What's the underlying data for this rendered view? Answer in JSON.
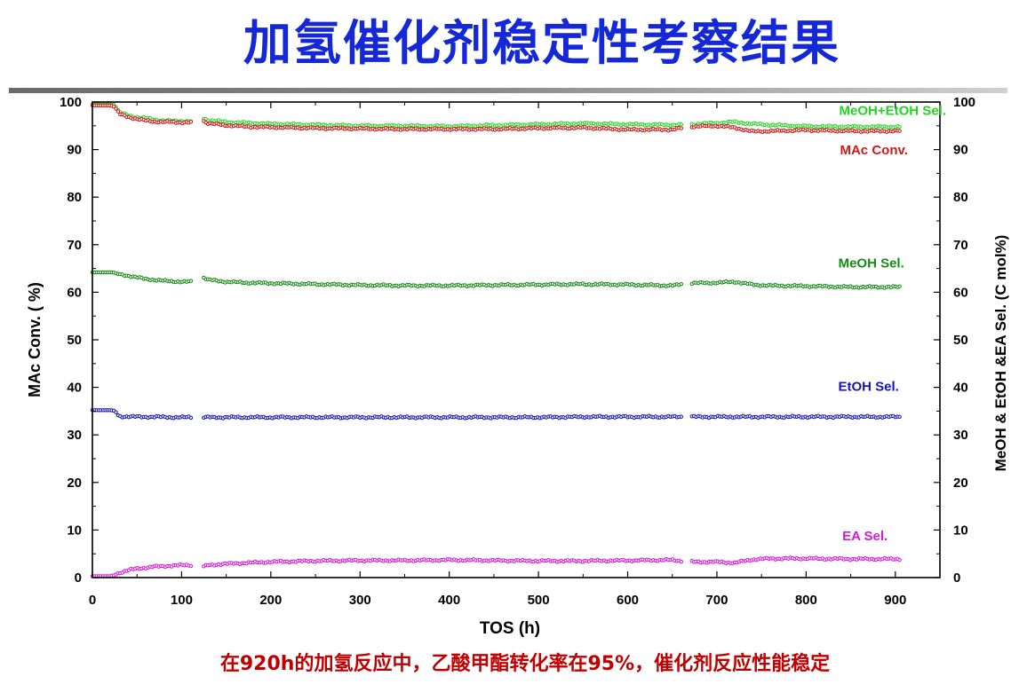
{
  "title": "加氢催化剂稳定性考察结果",
  "caption": "在920h的加氢反应中，乙酸甲酯转化率在95%，催化剂反应性能稳定",
  "chart_data": {
    "type": "scatter",
    "xlabel": "TOS (h)",
    "ylabel_left": "MAc Conv. ( %)",
    "ylabel_right": "MeOH & EtOH &EA Sel. (C mol%)",
    "xlim": [
      0,
      950
    ],
    "ylim": [
      0,
      100
    ],
    "xticks": [
      0,
      100,
      200,
      300,
      400,
      500,
      600,
      700,
      800,
      900
    ],
    "yticks": [
      0,
      10,
      20,
      30,
      40,
      50,
      60,
      70,
      80,
      90,
      100
    ],
    "grid": false,
    "series": [
      {
        "name": "MeOH+EtOH Sel.",
        "color": "#22d422",
        "points": [
          [
            0,
            99.5
          ],
          [
            5,
            99.5
          ],
          [
            10,
            99.5
          ],
          [
            15,
            99.5
          ],
          [
            20,
            99.5
          ],
          [
            25,
            99.4
          ],
          [
            30,
            97.8
          ],
          [
            40,
            97.2
          ],
          [
            50,
            96.8
          ],
          [
            60,
            96.6
          ],
          [
            70,
            96.3
          ],
          [
            80,
            96.1
          ],
          [
            90,
            96.0
          ],
          [
            100,
            96.0
          ],
          [
            110,
            96.0
          ],
          [
            125,
            96.6
          ],
          [
            130,
            96.2
          ],
          [
            150,
            95.8
          ],
          [
            175,
            95.6
          ],
          [
            200,
            95.4
          ],
          [
            250,
            95.2
          ],
          [
            300,
            95.0
          ],
          [
            350,
            95.0
          ],
          [
            400,
            94.9
          ],
          [
            450,
            95.1
          ],
          [
            500,
            95.3
          ],
          [
            550,
            95.5
          ],
          [
            600,
            95.3
          ],
          [
            650,
            95.2
          ],
          [
            670,
            95.3
          ],
          [
            700,
            95.6
          ],
          [
            720,
            95.8
          ],
          [
            740,
            95.4
          ],
          [
            760,
            95.2
          ],
          [
            800,
            94.9
          ],
          [
            850,
            94.8
          ],
          [
            905,
            94.8
          ]
        ]
      },
      {
        "name": "MAc Conv.",
        "color": "#d01818",
        "points": [
          [
            0,
            99.3
          ],
          [
            5,
            99.3
          ],
          [
            10,
            99.3
          ],
          [
            15,
            99.3
          ],
          [
            20,
            99.3
          ],
          [
            25,
            99.0
          ],
          [
            30,
            97.5
          ],
          [
            40,
            96.9
          ],
          [
            50,
            96.4
          ],
          [
            60,
            96.1
          ],
          [
            70,
            95.9
          ],
          [
            80,
            95.8
          ],
          [
            90,
            95.8
          ],
          [
            100,
            95.7
          ],
          [
            110,
            95.7
          ],
          [
            125,
            96.0
          ],
          [
            130,
            95.5
          ],
          [
            150,
            95.1
          ],
          [
            175,
            94.8
          ],
          [
            200,
            94.7
          ],
          [
            250,
            94.5
          ],
          [
            300,
            94.4
          ],
          [
            350,
            94.3
          ],
          [
            400,
            94.3
          ],
          [
            450,
            94.3
          ],
          [
            500,
            94.5
          ],
          [
            550,
            94.6
          ],
          [
            600,
            94.2
          ],
          [
            650,
            94.2
          ],
          [
            670,
            94.8
          ],
          [
            700,
            95.0
          ],
          [
            720,
            94.6
          ],
          [
            740,
            93.8
          ],
          [
            760,
            93.9
          ],
          [
            800,
            94.1
          ],
          [
            850,
            93.9
          ],
          [
            905,
            93.9
          ]
        ]
      },
      {
        "name": "MeOH Sel.",
        "color": "#158a15",
        "points": [
          [
            0,
            64.2
          ],
          [
            5,
            64.2
          ],
          [
            10,
            64.2
          ],
          [
            15,
            64.2
          ],
          [
            20,
            64.2
          ],
          [
            25,
            64.1
          ],
          [
            30,
            63.8
          ],
          [
            40,
            63.5
          ],
          [
            50,
            63.1
          ],
          [
            60,
            62.8
          ],
          [
            70,
            62.6
          ],
          [
            80,
            62.4
          ],
          [
            90,
            62.3
          ],
          [
            100,
            62.2
          ],
          [
            110,
            62.2
          ],
          [
            125,
            63.1
          ],
          [
            130,
            62.6
          ],
          [
            150,
            62.2
          ],
          [
            175,
            62.0
          ],
          [
            200,
            61.9
          ],
          [
            250,
            61.7
          ],
          [
            300,
            61.5
          ],
          [
            350,
            61.4
          ],
          [
            400,
            61.4
          ],
          [
            450,
            61.5
          ],
          [
            500,
            61.6
          ],
          [
            550,
            61.7
          ],
          [
            600,
            61.6
          ],
          [
            650,
            61.4
          ],
          [
            670,
            61.9
          ],
          [
            700,
            62.0
          ],
          [
            720,
            62.2
          ],
          [
            740,
            61.6
          ],
          [
            760,
            61.4
          ],
          [
            800,
            61.3
          ],
          [
            850,
            61.1
          ],
          [
            905,
            61.1
          ]
        ]
      },
      {
        "name": "EtOH Sel.",
        "color": "#1414b4",
        "points": [
          [
            0,
            35.2
          ],
          [
            5,
            35.2
          ],
          [
            10,
            35.2
          ],
          [
            15,
            35.2
          ],
          [
            20,
            35.2
          ],
          [
            25,
            35.1
          ],
          [
            30,
            33.9
          ],
          [
            50,
            33.8
          ],
          [
            70,
            33.8
          ],
          [
            90,
            33.7
          ],
          [
            110,
            33.7
          ],
          [
            125,
            33.7
          ],
          [
            150,
            33.7
          ],
          [
            200,
            33.7
          ],
          [
            250,
            33.7
          ],
          [
            300,
            33.7
          ],
          [
            350,
            33.7
          ],
          [
            400,
            33.7
          ],
          [
            450,
            33.7
          ],
          [
            500,
            33.7
          ],
          [
            550,
            33.8
          ],
          [
            600,
            33.8
          ],
          [
            650,
            33.8
          ],
          [
            670,
            33.8
          ],
          [
            700,
            33.8
          ],
          [
            740,
            33.8
          ],
          [
            760,
            33.8
          ],
          [
            800,
            33.8
          ],
          [
            850,
            33.8
          ],
          [
            905,
            33.8
          ]
        ]
      },
      {
        "name": "EA Sel.",
        "color": "#d818d8",
        "points": [
          [
            0,
            0.3
          ],
          [
            5,
            0.3
          ],
          [
            10,
            0.3
          ],
          [
            15,
            0.3
          ],
          [
            20,
            0.3
          ],
          [
            25,
            0.5
          ],
          [
            30,
            1.0
          ],
          [
            40,
            1.5
          ],
          [
            50,
            1.9
          ],
          [
            60,
            2.1
          ],
          [
            70,
            2.3
          ],
          [
            80,
            2.4
          ],
          [
            90,
            2.5
          ],
          [
            100,
            2.6
          ],
          [
            110,
            2.6
          ],
          [
            125,
            2.3
          ],
          [
            130,
            2.6
          ],
          [
            150,
            2.9
          ],
          [
            175,
            3.1
          ],
          [
            200,
            3.3
          ],
          [
            250,
            3.5
          ],
          [
            300,
            3.6
          ],
          [
            350,
            3.6
          ],
          [
            400,
            3.7
          ],
          [
            450,
            3.6
          ],
          [
            500,
            3.5
          ],
          [
            550,
            3.5
          ],
          [
            600,
            3.6
          ],
          [
            650,
            3.7
          ],
          [
            670,
            3.3
          ],
          [
            700,
            3.3
          ],
          [
            720,
            3.1
          ],
          [
            740,
            3.8
          ],
          [
            760,
            4.0
          ],
          [
            800,
            4.0
          ],
          [
            850,
            3.9
          ],
          [
            905,
            3.9
          ]
        ]
      }
    ],
    "annotations": [
      {
        "text": "MeOH+EtOH Sel.",
        "color": "#22d422",
        "x": 897,
        "y": 97.3
      },
      {
        "text": "MAc Conv.",
        "color": "#d01818",
        "x": 876,
        "y": 89.0
      },
      {
        "text": "MeOH Sel.",
        "color": "#158a15",
        "x": 873,
        "y": 65.2
      },
      {
        "text": "EtOH Sel.",
        "color": "#1414b4",
        "x": 870,
        "y": 39.3
      },
      {
        "text": "EA Sel.",
        "color": "#d818d8",
        "x": 866,
        "y": 7.8
      }
    ]
  }
}
